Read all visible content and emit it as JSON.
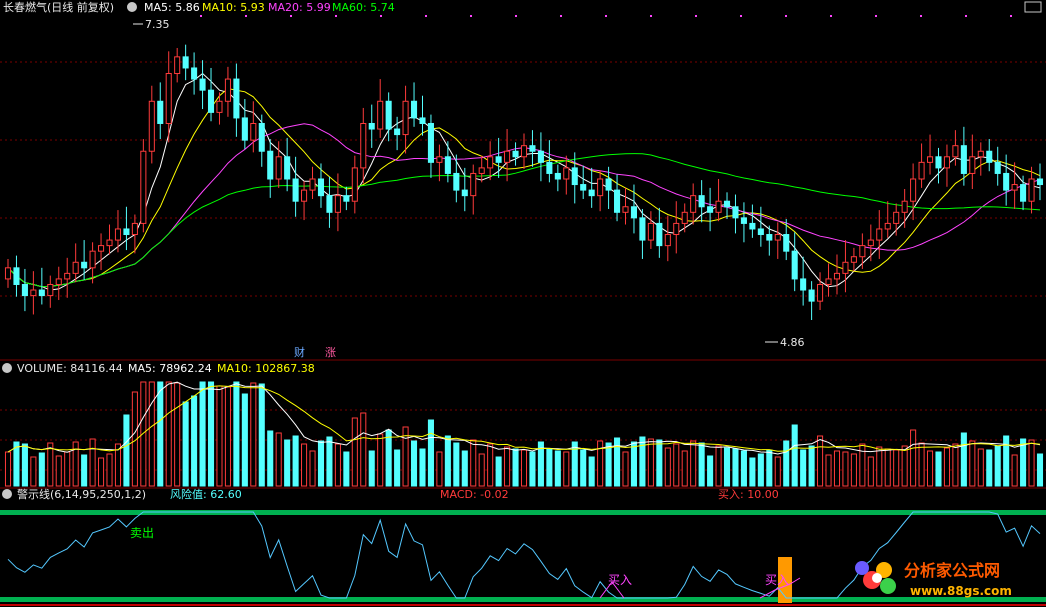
{
  "price_panel": {
    "title": "长春燃气(日线 前复权)",
    "ma5": "MA5: 5.86",
    "ma10": "MA10: 5.93",
    "ma20": "MA20: 5.99",
    "ma60": "MA60: 5.74",
    "high_label": "7.35",
    "low_label": "4.86",
    "badge_cai": "财",
    "badge_zhang": "涨"
  },
  "volume_panel": {
    "volume": "VOLUME: 84116.44",
    "ma5": "MA5: 78962.24",
    "ma10": "MA10: 102867.38"
  },
  "indicator_panel": {
    "title": "警示线(6,14,95,250,1,2)",
    "risk": "风险值: 62.60",
    "macd": "MACD: -0.02",
    "buy_value": "买入: 10.00",
    "sell_label": "卖出",
    "buy_label": "买入",
    "buy_label2": "买入"
  },
  "watermark": {
    "name": "分析家公式网",
    "url": "www.88gs.com"
  },
  "colors": {
    "up": "#ff3b3b",
    "down": "#54ffff",
    "ma5": "#ffffff",
    "ma10": "#ffff00",
    "ma20": "#ff44ff",
    "ma60": "#00ff00",
    "grid": "#7a0000"
  },
  "chart_data": {
    "type": "candlestick",
    "price_ylim": [
      4.6,
      7.5
    ],
    "high": 7.35,
    "low": 4.86,
    "closes": [
      5.25,
      5.1,
      5.0,
      5.05,
      5.0,
      5.1,
      5.15,
      5.2,
      5.3,
      5.25,
      5.4,
      5.45,
      5.5,
      5.6,
      5.55,
      5.65,
      6.3,
      6.75,
      6.55,
      7.0,
      7.15,
      7.05,
      6.95,
      6.85,
      6.65,
      6.75,
      6.95,
      6.6,
      6.4,
      6.55,
      6.3,
      6.05,
      6.25,
      6.05,
      5.85,
      5.95,
      6.05,
      5.9,
      5.75,
      5.9,
      5.85,
      6.15,
      6.55,
      6.5,
      6.75,
      6.5,
      6.45,
      6.75,
      6.6,
      6.55,
      6.2,
      6.25,
      6.1,
      5.95,
      5.9,
      6.1,
      6.15,
      6.25,
      6.2,
      6.3,
      6.25,
      6.35,
      6.3,
      6.2,
      6.1,
      6.05,
      6.15,
      6.0,
      5.95,
      5.9,
      6.05,
      5.95,
      5.75,
      5.8,
      5.7,
      5.5,
      5.65,
      5.45,
      5.55,
      5.65,
      5.75,
      5.9,
      5.8,
      5.75,
      5.85,
      5.8,
      5.7,
      5.65,
      5.6,
      5.55,
      5.5,
      5.55,
      5.4,
      5.15,
      5.05,
      4.95,
      5.1,
      5.15,
      5.2,
      5.3,
      5.35,
      5.45,
      5.5,
      5.6,
      5.65,
      5.75,
      5.85,
      6.05,
      6.2,
      6.25,
      6.15,
      6.25,
      6.35,
      6.1,
      6.25,
      6.3,
      6.2,
      6.1,
      5.95,
      6.0,
      5.85,
      6.05,
      6.0
    ]
  }
}
